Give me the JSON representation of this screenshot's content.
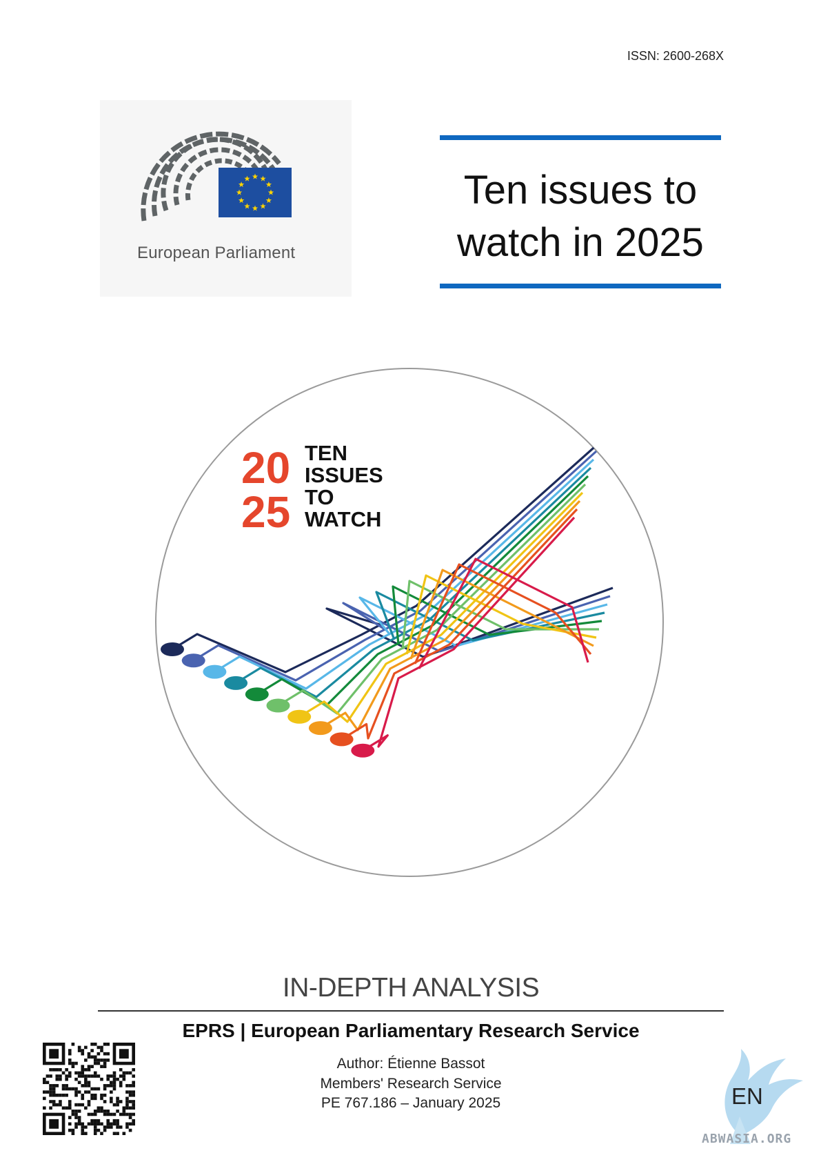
{
  "header": {
    "issn": "ISSN: 2600-268X"
  },
  "logo": {
    "name": "European Parliament",
    "flag_color": "#1d4ea0",
    "star_color": "#ffd400"
  },
  "title": {
    "line1": "Ten issues to",
    "line2": "watch in 2025",
    "rule_color": "#0f68c0"
  },
  "cover_graphic": {
    "year_top": "20",
    "year_bottom": "25",
    "words": [
      "TEN",
      "ISSUES",
      "TO",
      "WATCH"
    ],
    "year_color": "#e5462c",
    "line_colors": [
      "#1c2a5a",
      "#4a63b0",
      "#58b7e8",
      "#1a8aa0",
      "#138a3a",
      "#6fc06a",
      "#f0c415",
      "#f29a1c",
      "#e65020",
      "#d81b4a"
    ]
  },
  "footer": {
    "doc_type": "IN-DEPTH ANALYSIS",
    "service": "EPRS | European Parliamentary Research Service",
    "author": "Author: Étienne Bassot",
    "unit": "Members' Research Service",
    "reference": "PE 767.186 – January 2025",
    "language": "EN",
    "watermark": "ABWASIA.ORG"
  }
}
